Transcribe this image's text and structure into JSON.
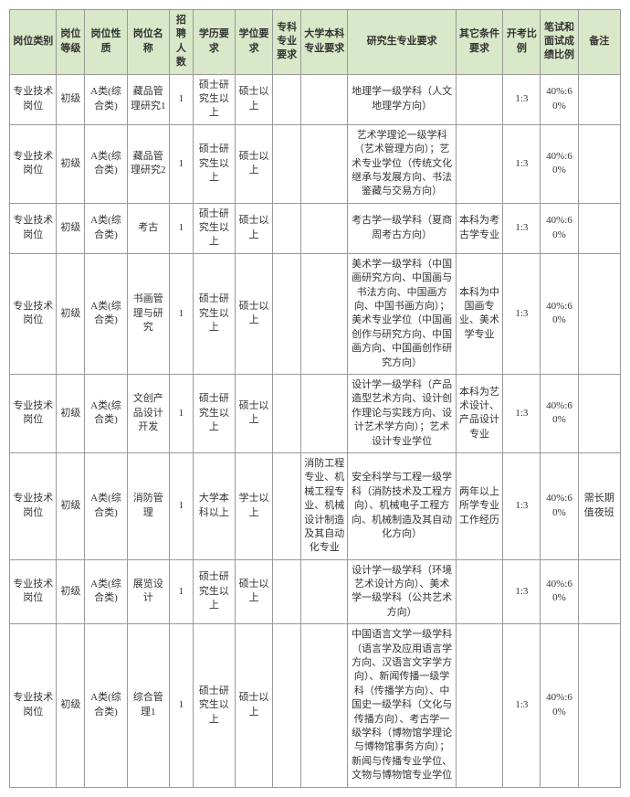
{
  "columns": [
    "岗位类别",
    "岗位等级",
    "岗位性质",
    "岗位名称",
    "招聘人数",
    "学历要求",
    "学位要求",
    "专科专业要求",
    "大学本科专业要求",
    "研究生专业要求",
    "其它条件要求",
    "开考比例",
    "笔试和面试成绩比例",
    "备注"
  ],
  "rows": [
    [
      "专业技术岗位",
      "初级",
      "A类(综合类)",
      "藏品管理研究1",
      "1",
      "硕士研究生以上",
      "硕士以上",
      "",
      "",
      "地理学一级学科（人文地理学方向）",
      "",
      "1:3",
      "40%:60%",
      ""
    ],
    [
      "专业技术岗位",
      "初级",
      "A类(综合类)",
      "藏品管理研究2",
      "1",
      "硕士研究生以上",
      "硕士以上",
      "",
      "",
      "艺术学理论一级学科（艺术管理方向）；艺术专业学位（传统文化继承与发展方向、书法鉴藏与交易方向）",
      "",
      "1:3",
      "40%:60%",
      ""
    ],
    [
      "专业技术岗位",
      "初级",
      "A类(综合类)",
      "考古",
      "1",
      "硕士研究生以上",
      "硕士以上",
      "",
      "",
      "考古学一级学科（夏商周考古方向）",
      "本科为考古学专业",
      "1:3",
      "40%:60%",
      ""
    ],
    [
      "专业技术岗位",
      "初级",
      "A类(综合类)",
      "书画管理与研究",
      "1",
      "硕士研究生以上",
      "硕士以上",
      "",
      "",
      "美术学一级学科（中国画研究方向、中国画与书法方向、中国画方向、中国书画方向）；美术专业学位（中国画创作与研究方向、中国画方向、中国画创作研究方向）",
      "本科为中国画专业、美术学专业",
      "1:3",
      "40%:60%",
      ""
    ],
    [
      "专业技术岗位",
      "初级",
      "A类(综合类)",
      "文创产品设计开发",
      "1",
      "硕士研究生以上",
      "硕士以上",
      "",
      "",
      "设计学一级学科（产品造型艺术方向、设计创作理论与实践方向、设计艺术学方向）；艺术设计专业学位",
      "本科为艺术设计、产品设计专业",
      "1:3",
      "40%:60%",
      ""
    ],
    [
      "专业技术岗位",
      "初级",
      "A类(综合类)",
      "消防管理",
      "1",
      "大学本科以上",
      "学士以上",
      "",
      "消防工程专业、机械工程专业、机械设计制造及其自动化专业",
      "安全科学与工程一级学科（消防技术及工程方向）、机械电子工程方向、机械制造及其自动化方向）",
      "两年以上所学专业工作经历",
      "1:3",
      "40%:60%",
      "需长期值夜班"
    ],
    [
      "专业技术岗位",
      "初级",
      "A类(综合类)",
      "展览设计",
      "1",
      "硕士研究生以上",
      "硕士以上",
      "",
      "",
      "设计学一级学科（环境艺术设计方向）、美术学一级学科（公共艺术方向）",
      "",
      "1:3",
      "40%:60%",
      ""
    ],
    [
      "专业技术岗位",
      "初级",
      "A类(综合类)",
      "综合管理1",
      "1",
      "硕士研究生以上",
      "硕士以上",
      "",
      "",
      "中国语言文学一级学科（语言学及应用语言学方向、汉语言文字学方向）、新闻传播一级学科（传播学方向）、中国史一级学科（文化与传播方向）、考古学一级学科（博物馆学理论与博物馆事务方向）；新闻与传播专业学位、文物与博物馆专业学位",
      "",
      "1:3",
      "40%:60%",
      ""
    ]
  ],
  "header_bg": "#d9e8c8",
  "border_color": "#999999",
  "cell_bg": "#ffffff",
  "font_size": 11
}
